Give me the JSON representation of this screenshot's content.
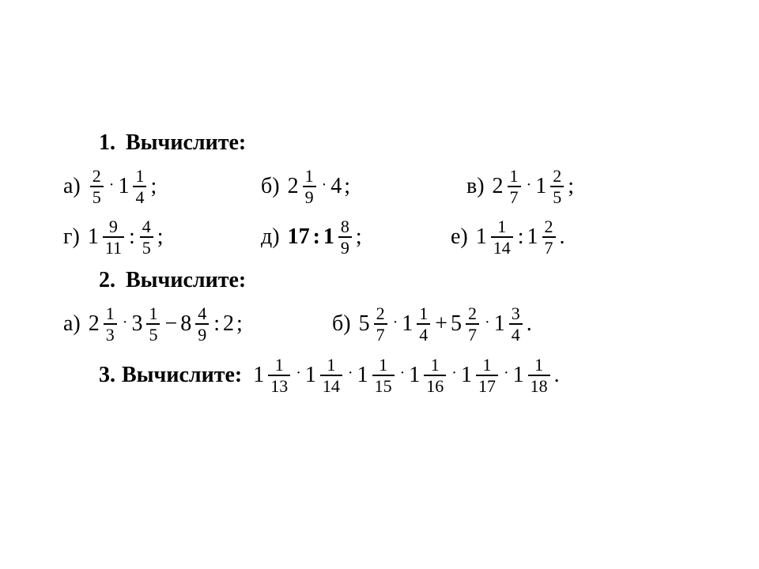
{
  "colors": {
    "text": "#000000",
    "bg": "#ffffff"
  },
  "typography": {
    "base_fontsize_pt": 21,
    "frac_fontsize_pt": 16,
    "family": "Times New Roman / Bookman, serif"
  },
  "sections": {
    "s1": {
      "number": "1.",
      "title": "Вычислите:",
      "items": {
        "a": {
          "label": "а)",
          "terms": [
            {
              "type": "frac",
              "n": "2",
              "d": "5"
            },
            {
              "type": "dot"
            },
            {
              "type": "mixed",
              "w": "1",
              "n": "1",
              "d": "4"
            }
          ],
          "tail": ";"
        },
        "b": {
          "label": "б)",
          "terms": [
            {
              "type": "mixed",
              "w": "2",
              "n": "1",
              "d": "9"
            },
            {
              "type": "dot"
            },
            {
              "type": "int",
              "v": "4"
            }
          ],
          "tail": ";"
        },
        "v": {
          "label": "в)",
          "terms": [
            {
              "type": "mixed",
              "w": "2",
              "n": "1",
              "d": "7"
            },
            {
              "type": "dot"
            },
            {
              "type": "mixed",
              "w": "1",
              "n": "2",
              "d": "5"
            }
          ],
          "tail": ";"
        },
        "g": {
          "label": "г)",
          "terms": [
            {
              "type": "mixed",
              "w": "1",
              "n": "9",
              "d": "11"
            },
            {
              "type": "op",
              "v": ":"
            },
            {
              "type": "frac",
              "n": "4",
              "d": "5"
            }
          ],
          "tail": ";"
        },
        "d": {
          "label": "д)",
          "terms": [
            {
              "type": "int",
              "v": "17",
              "bold": true
            },
            {
              "type": "op",
              "v": ":",
              "bold": true
            },
            {
              "type": "mixed",
              "w": "1",
              "n": "8",
              "d": "9",
              "boldWhole": true
            }
          ],
          "tail": ";"
        },
        "e": {
          "label": "е)",
          "terms": [
            {
              "type": "mixed",
              "w": "1",
              "n": "1",
              "d": "14"
            },
            {
              "type": "op",
              "v": ":"
            },
            {
              "type": "mixed",
              "w": "1",
              "n": "2",
              "d": "7"
            }
          ],
          "tail": "."
        }
      }
    },
    "s2": {
      "number": "2.",
      "title": "Вычислите:",
      "items": {
        "a": {
          "label": "а)",
          "terms": [
            {
              "type": "mixed",
              "w": "2",
              "n": "1",
              "d": "3"
            },
            {
              "type": "dot"
            },
            {
              "type": "mixed",
              "w": "3",
              "n": "1",
              "d": "5"
            },
            {
              "type": "op",
              "v": "−"
            },
            {
              "type": "mixed",
              "w": "8",
              "n": "4",
              "d": "9"
            },
            {
              "type": "op",
              "v": ":"
            },
            {
              "type": "int",
              "v": "2"
            }
          ],
          "tail": ";"
        },
        "b": {
          "label": "б)",
          "terms": [
            {
              "type": "mixed",
              "w": "5",
              "n": "2",
              "d": "7"
            },
            {
              "type": "dot"
            },
            {
              "type": "mixed",
              "w": "1",
              "n": "1",
              "d": "4"
            },
            {
              "type": "op",
              "v": "+"
            },
            {
              "type": "mixed",
              "w": "5",
              "n": "2",
              "d": "7"
            },
            {
              "type": "dot"
            },
            {
              "type": "mixed",
              "w": "1",
              "n": "3",
              "d": "4"
            }
          ],
          "tail": "."
        }
      }
    },
    "s3": {
      "number": "3.",
      "title": "Вычислите:",
      "expr": {
        "terms": [
          {
            "type": "mixed",
            "w": "1",
            "n": "1",
            "d": "13"
          },
          {
            "type": "dot"
          },
          {
            "type": "mixed",
            "w": "1",
            "n": "1",
            "d": "14"
          },
          {
            "type": "dot"
          },
          {
            "type": "mixed",
            "w": "1",
            "n": "1",
            "d": "15"
          },
          {
            "type": "dot"
          },
          {
            "type": "mixed",
            "w": "1",
            "n": "1",
            "d": "16"
          },
          {
            "type": "dot"
          },
          {
            "type": "mixed",
            "w": "1",
            "n": "1",
            "d": "17"
          },
          {
            "type": "dot"
          },
          {
            "type": "mixed",
            "w": "1",
            "n": "1",
            "d": "18"
          }
        ],
        "tail": "."
      }
    }
  }
}
